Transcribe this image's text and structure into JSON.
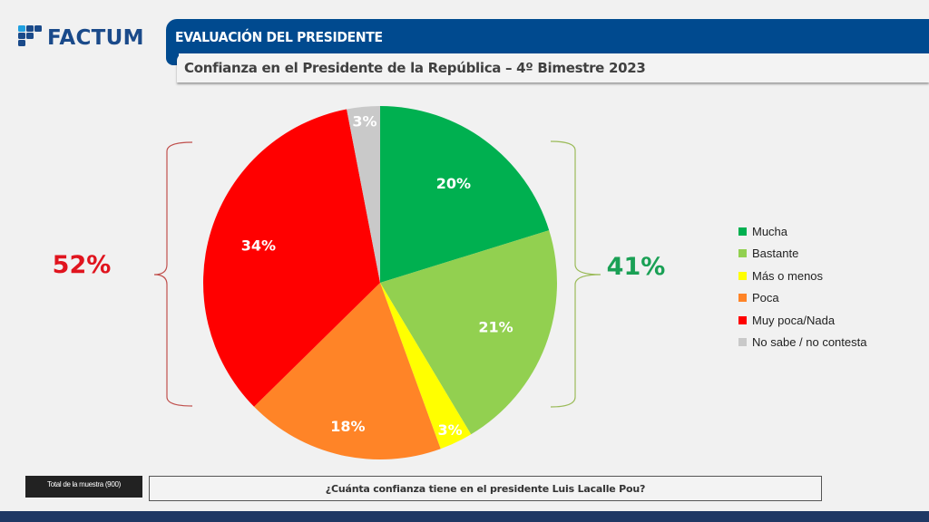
{
  "brand": {
    "logo_text": "FACTUM",
    "logo_icon": "factum-grid-logo"
  },
  "header": {
    "section_title": "EVALUACIÓN DEL PRESIDENTE",
    "subtitle": "Confianza en el Presidente de la República – 4º Bimestre 2023"
  },
  "footer": {
    "sample_label": "Total de la muestra (900)",
    "question": "¿Cuánta confianza tiene en el presidente Luis Lacalle Pou?"
  },
  "colors": {
    "brand_blue": "#004a8f",
    "footer_navy": "#1f3864",
    "positive_green": "#1aa055",
    "negative_red": "#e0141e"
  },
  "chart_data": {
    "type": "pie",
    "title": "Confianza en el Presidente de la República – 4º Bimestre 2023",
    "start_angle_deg": 0,
    "direction": "clockwise",
    "legend_position": "right",
    "slices": [
      {
        "label": "Mucha",
        "value": 20,
        "display": "20%",
        "color": "#00b050"
      },
      {
        "label": "Bastante",
        "value": 21,
        "display": "21%",
        "color": "#92d050"
      },
      {
        "label": "Más o menos",
        "value": 3,
        "display": "3%",
        "color": "#ffff00"
      },
      {
        "label": "Poca",
        "value": 18,
        "display": "18%",
        "color": "#ff8427"
      },
      {
        "label": "Muy poca/Nada",
        "value": 34,
        "display": "34%",
        "color": "#ff0000"
      },
      {
        "label": "No sabe / no contesta",
        "value": 3,
        "display": "3%",
        "color": "#c9c9c9"
      }
    ],
    "annotations": [
      {
        "text": "52%",
        "groups": [
          "Poca",
          "Muy poca/Nada"
        ],
        "color": "#e0141e",
        "side": "left"
      },
      {
        "text": "41%",
        "groups": [
          "Mucha",
          "Bastante"
        ],
        "color": "#1aa055",
        "side": "right"
      }
    ]
  }
}
